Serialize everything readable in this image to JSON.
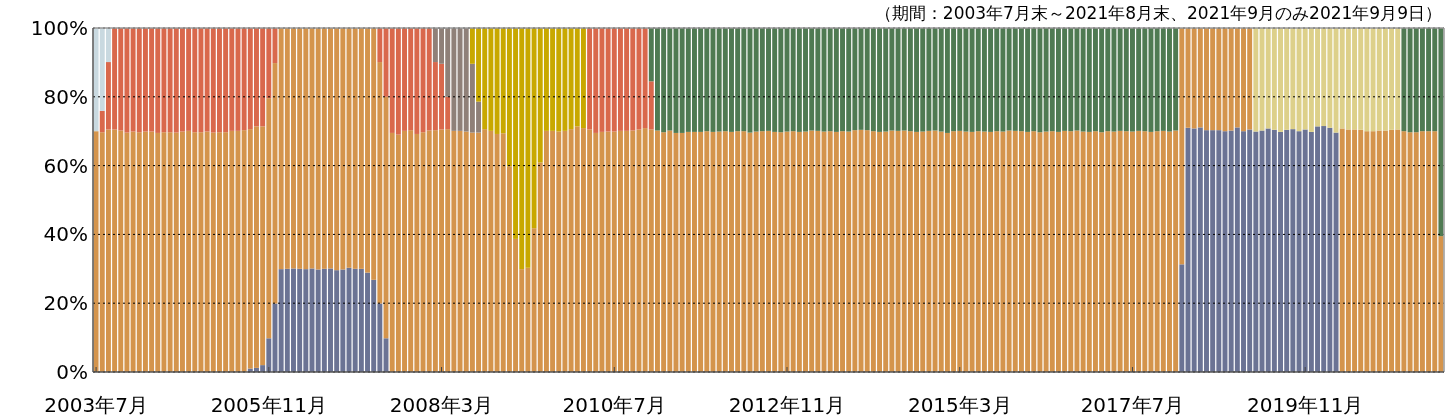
{
  "chart_data": {
    "type": "bar",
    "stacked": true,
    "subtitle": "（期間：2003年7月末～2021年8月末、2021年9月のみ2021年9月9日）",
    "categories": [
      "2003年7月",
      null,
      null,
      null,
      null,
      null,
      null,
      null,
      null,
      null,
      null,
      null,
      null,
      null,
      null,
      null,
      null,
      null,
      null,
      null,
      null,
      null,
      null,
      null,
      null,
      null,
      null,
      null,
      "2005年11月",
      null,
      null,
      null,
      null,
      null,
      null,
      null,
      null,
      null,
      null,
      null,
      null,
      null,
      null,
      null,
      null,
      null,
      null,
      null,
      null,
      null,
      null,
      null,
      null,
      null,
      null,
      null,
      "2008年3月",
      null,
      null,
      null,
      null,
      null,
      null,
      null,
      null,
      null,
      null,
      null,
      null,
      null,
      null,
      null,
      null,
      null,
      null,
      null,
      null,
      null,
      null,
      null,
      null,
      null,
      null,
      null,
      "2010年7月",
      null,
      null,
      null,
      null,
      null,
      null,
      null,
      null,
      null,
      null,
      null,
      null,
      null,
      null,
      null,
      null,
      null,
      null,
      null,
      null,
      null,
      null,
      null,
      null,
      null,
      null,
      null,
      "2012年11月",
      null,
      null,
      null,
      null,
      null,
      null,
      null,
      null,
      null,
      null,
      null,
      null,
      null,
      null,
      null,
      null,
      null,
      null,
      null,
      null,
      null,
      null,
      null,
      null,
      null,
      null,
      null,
      "2015年3月",
      null,
      null,
      null,
      null,
      null,
      null,
      null,
      null,
      null,
      null,
      null,
      null,
      null,
      null,
      null,
      null,
      null,
      null,
      null,
      null,
      null,
      null,
      null,
      null,
      null,
      null,
      null,
      "2017年7月",
      null,
      null,
      null,
      null,
      null,
      null,
      null,
      null,
      null,
      null,
      null,
      null,
      null,
      null,
      null,
      null,
      null,
      null,
      null,
      null,
      null,
      null,
      null,
      null,
      null,
      null,
      null,
      "2019年11月",
      null,
      null,
      null,
      null,
      null,
      null,
      null,
      null,
      null,
      null,
      null,
      null,
      null,
      null,
      null,
      null,
      null,
      null,
      null,
      null,
      null,
      null
    ],
    "ylim": [
      0,
      100
    ],
    "yticks": [
      {
        "value": 0,
        "label": "0%"
      },
      {
        "value": 20,
        "label": "20%"
      },
      {
        "value": 40,
        "label": "40%"
      },
      {
        "value": 60,
        "label": "60%"
      },
      {
        "value": 80,
        "label": "80%"
      },
      {
        "value": 100,
        "label": "100%"
      }
    ],
    "grid": "y",
    "series": [
      {
        "color": "#6b7394",
        "values": [
          null,
          null,
          null,
          null,
          null,
          null,
          null,
          null,
          null,
          null,
          null,
          null,
          null,
          null,
          null,
          null,
          null,
          null,
          null,
          null,
          null,
          null,
          null,
          null,
          null,
          1.0,
          1.2,
          2.0,
          9.8,
          19.9,
          29.9,
          30.0,
          30.1,
          30.0,
          29.9,
          30.1,
          29.8,
          30.0,
          30.1,
          29.6,
          29.8,
          30.3,
          30.0,
          30.0,
          28.9,
          26.8,
          19.9,
          9.8,
          null,
          null,
          null,
          null,
          null,
          null,
          null,
          null,
          null,
          null,
          null,
          null,
          null,
          null,
          null,
          null,
          null,
          null,
          null,
          null,
          null,
          null,
          null,
          null,
          null,
          null,
          null,
          null,
          null,
          null,
          null,
          null,
          null,
          null,
          null,
          null,
          null,
          null,
          null,
          null,
          null,
          null,
          null,
          null,
          null,
          null,
          null,
          null,
          null,
          null,
          null,
          null,
          null,
          null,
          null,
          null,
          null,
          null,
          null,
          null,
          null,
          null,
          null,
          null,
          null,
          null,
          null,
          null,
          null,
          null,
          null,
          null,
          null,
          null,
          null,
          null,
          null,
          null,
          null,
          null,
          null,
          null,
          null,
          null,
          null,
          null,
          null,
          null,
          null,
          null,
          null,
          null,
          null,
          null,
          null,
          null,
          null,
          null,
          null,
          null,
          null,
          null,
          null,
          null,
          null,
          null,
          null,
          null,
          null,
          null,
          null,
          null,
          null,
          null,
          null,
          null,
          null,
          null,
          null,
          null,
          null,
          null,
          null,
          null,
          null,
          null,
          null,
          null,
          31.3,
          71.0,
          70.8,
          71.1,
          70.3,
          70.3,
          70.3,
          70.0,
          70.2,
          71.1,
          70.0,
          70.5,
          69.9,
          70.2,
          70.8,
          70.4,
          69.8,
          70.4,
          70.6,
          70.0,
          70.5,
          69.8,
          71.4,
          71.5,
          71.0,
          69.6,
          null,
          null,
          null,
          null,
          null,
          null,
          null,
          null,
          null,
          null,
          null,
          null,
          null,
          null,
          null,
          null,
          null
        ]
      },
      {
        "color": "#d4944c",
        "values": [
          70.0,
          69.7,
          70.5,
          70.5,
          70.2,
          69.6,
          69.9,
          69.7,
          69.9,
          69.9,
          69.5,
          69.7,
          69.7,
          69.6,
          69.9,
          70.1,
          69.7,
          69.7,
          69.9,
          69.6,
          69.7,
          69.7,
          70.1,
          70.1,
          70.3,
          69.6,
          70.2,
          69.4,
          69.8,
          69.9,
          70.1,
          70.0,
          69.9,
          70.0,
          70.1,
          69.9,
          70.2,
          70.0,
          69.9,
          70.4,
          70.2,
          69.7,
          70.0,
          70.0,
          71.1,
          73.2,
          70.2,
          70.2,
          69.5,
          69.0,
          70.1,
          70.3,
          69.2,
          69.7,
          70.2,
          70.3,
          70.5,
          70.6,
          70.1,
          70.1,
          69.9,
          69.6,
          69.6,
          70.6,
          70.1,
          69.2,
          69.4,
          59.8,
          38.7,
          29.9,
          30.3,
          41.8,
          60.9,
          70.1,
          70.1,
          69.9,
          70.1,
          70.6,
          71.4,
          70.9,
          70.5,
          69.5,
          69.8,
          69.9,
          69.9,
          70.1,
          70.1,
          70.2,
          70.5,
          70.9,
          70.5,
          70.2,
          69.7,
          70.2,
          69.5,
          69.5,
          69.8,
          69.8,
          69.8,
          70.0,
          69.8,
          69.9,
          70.0,
          69.8,
          70.0,
          70.0,
          69.6,
          69.9,
          70.0,
          70.1,
          69.8,
          69.7,
          69.9,
          70.0,
          69.8,
          69.9,
          70.2,
          70.1,
          69.9,
          70.0,
          69.8,
          70.0,
          69.9,
          70.3,
          70.4,
          70.3,
          70.0,
          69.8,
          69.9,
          70.2,
          70.1,
          70.2,
          70.0,
          69.8,
          69.9,
          70.1,
          70.2,
          69.9,
          69.5,
          70.0,
          70.1,
          69.9,
          69.8,
          70.0,
          69.9,
          69.8,
          70.0,
          69.9,
          70.2,
          70.1,
          70.0,
          69.8,
          70.0,
          69.7,
          69.9,
          70.0,
          69.8,
          70.1,
          70.0,
          70.2,
          69.9,
          69.8,
          70.0,
          69.7,
          70.0,
          69.9,
          70.1,
          70.0,
          69.9,
          70.1,
          70.0,
          69.8,
          70.0,
          70.1,
          69.9,
          70.2,
          68.7,
          29.0,
          29.2,
          28.9,
          29.7,
          29.7,
          29.7,
          30.0,
          29.8,
          28.9,
          30.0,
          29.5,
          null,
          null,
          null,
          null,
          null,
          null,
          null,
          null,
          null,
          null,
          null,
          null,
          null,
          null,
          70.8,
          70.5,
          70.5,
          70.4,
          70.0,
          70.0,
          70.2,
          70.2,
          70.4,
          70.5,
          70.0,
          69.7,
          69.7,
          70.0,
          70.0,
          70.0,
          39.5
        ]
      },
      {
        "color": "#d9684c",
        "values": [
          null,
          6.2,
          19.6,
          29.5,
          29.8,
          30.4,
          30.1,
          30.3,
          30.1,
          30.1,
          30.5,
          30.3,
          30.3,
          30.4,
          30.1,
          29.9,
          30.3,
          30.3,
          30.1,
          30.4,
          30.3,
          30.3,
          29.9,
          29.9,
          29.7,
          29.4,
          28.6,
          28.6,
          20.4,
          10.2,
          null,
          null,
          null,
          null,
          null,
          null,
          null,
          null,
          null,
          null,
          null,
          null,
          null,
          null,
          null,
          null,
          9.9,
          20.0,
          30.5,
          31.0,
          29.9,
          29.7,
          30.8,
          30.3,
          29.8,
          19.8,
          19.1,
          9.4,
          null,
          null,
          null,
          null,
          null,
          null,
          null,
          null,
          null,
          null,
          null,
          null,
          null,
          null,
          null,
          null,
          null,
          null,
          null,
          null,
          null,
          null,
          29.5,
          30.5,
          30.2,
          30.1,
          30.1,
          29.9,
          29.9,
          29.8,
          29.5,
          29.1,
          14.0,
          null,
          null,
          null,
          null,
          null,
          null,
          null,
          null,
          null,
          null,
          null,
          null,
          null,
          null,
          null,
          null,
          null,
          null,
          null,
          null,
          null,
          null,
          null,
          null,
          null,
          null,
          null,
          null,
          null,
          null,
          null,
          null,
          null,
          null,
          null,
          null,
          null,
          null,
          null,
          null,
          null,
          null,
          null,
          null,
          null,
          null,
          null,
          null,
          null,
          null,
          null,
          null,
          null,
          null,
          null,
          null,
          null,
          null,
          null,
          null,
          null,
          null,
          null,
          null,
          null,
          null,
          null,
          null,
          null,
          null,
          null,
          null,
          null,
          null,
          null,
          null,
          null,
          null,
          null,
          null,
          null,
          null,
          null,
          null,
          null,
          null,
          null,
          null,
          null,
          null,
          null,
          null,
          null,
          null,
          null,
          null,
          null,
          null,
          null,
          null,
          null,
          null,
          null,
          null,
          null,
          null,
          null,
          null,
          null,
          null,
          null,
          null,
          null,
          null,
          null,
          null,
          null,
          null,
          null,
          null,
          null,
          null,
          null,
          null,
          null,
          null,
          null,
          null
        ]
      },
      {
        "color": "#c9d9e0",
        "values": [
          30.0,
          24.1,
          9.9,
          null,
          null,
          null,
          null,
          null,
          null,
          null,
          null,
          null,
          null,
          null,
          null,
          null,
          null,
          null,
          null,
          null,
          null,
          null,
          null,
          null,
          null,
          null,
          null,
          null,
          null,
          null,
          null,
          null,
          null,
          null,
          null,
          null,
          null,
          null,
          null,
          null,
          null,
          null,
          null,
          null,
          null,
          null,
          null,
          null,
          null,
          null,
          null,
          null,
          null,
          null,
          null,
          null,
          null,
          null,
          null,
          null,
          null,
          null,
          null,
          null,
          null,
          null,
          null,
          null,
          null,
          null,
          null,
          null,
          null,
          null,
          null,
          null,
          null,
          null,
          null,
          null,
          null,
          null,
          null,
          null,
          null,
          null,
          null,
          null,
          null,
          null,
          null,
          null,
          null,
          null,
          null,
          null,
          null,
          null,
          null,
          null,
          null,
          null,
          null,
          null,
          null,
          null,
          null,
          null,
          null,
          null,
          null,
          null,
          null,
          null,
          null,
          null,
          null,
          null,
          null,
          null,
          null,
          null,
          null,
          null,
          null,
          null,
          null,
          null,
          null,
          null,
          null,
          null,
          null,
          null,
          null,
          null,
          null,
          null,
          null,
          null,
          null,
          null,
          null,
          null,
          null,
          null,
          null,
          null,
          null,
          null,
          null,
          null,
          null,
          null,
          null,
          null,
          null,
          null,
          null,
          null,
          null,
          null,
          null,
          null,
          null,
          null,
          null,
          null,
          null,
          null,
          null,
          null,
          null,
          null,
          null,
          null,
          null,
          null,
          null,
          null,
          null,
          null,
          null,
          null,
          null,
          null,
          null,
          null,
          null,
          null,
          null,
          null,
          null,
          null,
          null,
          null,
          null,
          null,
          null,
          null,
          null,
          null,
          null,
          null,
          null,
          null,
          null,
          null,
          null,
          null,
          null,
          null,
          null,
          null,
          null,
          null,
          null,
          null,
          null
        ]
      },
      {
        "color": "#8f8078",
        "values": [
          null,
          null,
          null,
          null,
          null,
          null,
          null,
          null,
          null,
          null,
          null,
          null,
          null,
          null,
          null,
          null,
          null,
          null,
          null,
          null,
          null,
          null,
          null,
          null,
          null,
          null,
          null,
          null,
          null,
          null,
          null,
          null,
          null,
          null,
          null,
          null,
          null,
          null,
          null,
          null,
          null,
          null,
          null,
          null,
          null,
          null,
          null,
          null,
          null,
          null,
          null,
          null,
          null,
          null,
          null,
          9.9,
          10.4,
          20.0,
          29.9,
          29.9,
          30.1,
          20.0,
          9.0,
          null,
          null,
          null,
          null,
          null,
          null,
          null,
          null,
          null,
          null,
          null,
          null,
          null,
          null,
          null,
          null,
          null,
          null,
          null,
          null,
          null,
          null,
          null,
          null,
          null,
          null,
          null,
          null,
          null,
          null,
          null,
          null,
          null,
          null,
          null,
          null,
          null,
          null,
          null,
          null,
          null,
          null,
          null,
          null,
          null,
          null,
          null,
          null,
          null,
          null,
          null,
          null,
          null,
          null,
          null,
          null,
          null,
          null,
          null,
          null,
          null,
          null,
          null,
          null,
          null,
          null,
          null,
          null,
          null,
          null,
          null,
          null,
          null,
          null,
          null,
          null,
          null,
          null,
          null,
          null,
          null,
          null,
          null,
          null,
          null,
          null,
          null,
          null,
          null,
          null,
          null,
          null,
          null,
          null,
          null,
          null,
          null,
          null,
          null,
          null,
          null,
          null,
          null,
          null,
          null,
          null,
          null,
          null,
          null,
          null,
          null,
          null,
          null,
          null,
          null,
          null,
          null,
          null,
          null,
          null,
          null,
          null,
          null,
          null,
          null,
          null,
          null,
          null,
          null,
          null,
          null,
          null,
          null,
          null,
          null,
          null,
          null,
          null,
          null,
          null,
          null,
          null,
          null,
          null,
          null,
          null,
          null,
          null,
          null,
          null,
          null,
          null,
          null,
          null,
          null,
          null
        ]
      },
      {
        "color": "#c8a800",
        "values": [
          null,
          null,
          null,
          null,
          null,
          null,
          null,
          null,
          null,
          null,
          null,
          null,
          null,
          null,
          null,
          null,
          null,
          null,
          null,
          null,
          null,
          null,
          null,
          null,
          null,
          null,
          null,
          null,
          null,
          null,
          null,
          null,
          null,
          null,
          null,
          null,
          null,
          null,
          null,
          null,
          null,
          null,
          null,
          null,
          null,
          null,
          null,
          null,
          null,
          null,
          null,
          null,
          null,
          null,
          null,
          null,
          null,
          null,
          null,
          null,
          null,
          10.4,
          21.4,
          29.4,
          29.9,
          30.8,
          30.6,
          40.2,
          61.3,
          70.1,
          69.7,
          58.2,
          39.1,
          29.9,
          29.9,
          30.1,
          29.9,
          29.4,
          28.6,
          29.1,
          null,
          null,
          null,
          null,
          null,
          null,
          null,
          null,
          null,
          null,
          null,
          null,
          null,
          null,
          null,
          null,
          null,
          null,
          null,
          null,
          null,
          null,
          null,
          null,
          null,
          null,
          null,
          null,
          null,
          null,
          null,
          null,
          null,
          null,
          null,
          null,
          null,
          null,
          null,
          null,
          null,
          null,
          null,
          null,
          null,
          null,
          null,
          null,
          null,
          null,
          null,
          null,
          null,
          null,
          null,
          null,
          null,
          null,
          null,
          null,
          null,
          null,
          null,
          null,
          null,
          null,
          null,
          null,
          null,
          null,
          null,
          null,
          null,
          null,
          null,
          null,
          null,
          null,
          null,
          null,
          null,
          null,
          null,
          null,
          null,
          null,
          null,
          null,
          null,
          null,
          null,
          null,
          null,
          null,
          null,
          null,
          null,
          null,
          null,
          null,
          null,
          null,
          null,
          null,
          null,
          null,
          null,
          null,
          null,
          null,
          null,
          null,
          null,
          null,
          null,
          null,
          null,
          null,
          null,
          null,
          null,
          null,
          null,
          null,
          null,
          null,
          null,
          null,
          null,
          null,
          null,
          null,
          null,
          null,
          null,
          null,
          null,
          null,
          null
        ]
      },
      {
        "color": "#4f7a52",
        "values": [
          null,
          null,
          null,
          null,
          null,
          null,
          null,
          null,
          null,
          null,
          null,
          null,
          null,
          null,
          null,
          null,
          null,
          null,
          null,
          null,
          null,
          null,
          null,
          null,
          null,
          null,
          null,
          null,
          null,
          null,
          null,
          null,
          null,
          null,
          null,
          null,
          null,
          null,
          null,
          null,
          null,
          null,
          null,
          null,
          null,
          null,
          null,
          null,
          null,
          null,
          null,
          null,
          null,
          null,
          null,
          null,
          null,
          null,
          null,
          null,
          null,
          null,
          null,
          null,
          null,
          null,
          null,
          null,
          null,
          null,
          null,
          null,
          null,
          null,
          null,
          null,
          null,
          null,
          null,
          null,
          null,
          null,
          null,
          null,
          null,
          null,
          null,
          null,
          null,
          null,
          15.5,
          29.8,
          30.3,
          29.8,
          30.5,
          30.5,
          30.2,
          30.2,
          30.2,
          30.0,
          30.2,
          30.1,
          30.0,
          30.2,
          30.0,
          30.0,
          30.4,
          30.1,
          30.0,
          29.9,
          30.2,
          30.3,
          30.1,
          30.0,
          30.2,
          30.1,
          29.8,
          29.9,
          30.1,
          30.0,
          30.2,
          30.0,
          30.1,
          29.7,
          29.6,
          29.7,
          30.0,
          30.2,
          30.1,
          29.8,
          29.9,
          29.8,
          30.0,
          30.2,
          30.1,
          29.9,
          29.8,
          30.1,
          30.5,
          30.0,
          29.9,
          30.1,
          30.2,
          30.0,
          30.1,
          30.2,
          30.0,
          30.1,
          29.8,
          29.9,
          30.0,
          30.2,
          30.0,
          30.3,
          30.1,
          30.0,
          30.2,
          29.9,
          30.0,
          29.8,
          30.1,
          30.2,
          30.0,
          30.3,
          30.0,
          30.1,
          29.9,
          30.0,
          30.1,
          29.9,
          30.0,
          30.2,
          30.0,
          29.9,
          30.1,
          29.8,
          null,
          null,
          null,
          null,
          null,
          null,
          null,
          null,
          null,
          null,
          null,
          null,
          null,
          null,
          null,
          null,
          null,
          null,
          null,
          null,
          null,
          null,
          null,
          null,
          null,
          null,
          null,
          null,
          null,
          null,
          null,
          null,
          null,
          null,
          null,
          null,
          30.0,
          30.3,
          30.3,
          30.0,
          30.0,
          30.0,
          60.5
        ]
      },
      {
        "color": "#ddd08a",
        "values": [
          null,
          null,
          null,
          null,
          null,
          null,
          null,
          null,
          null,
          null,
          null,
          null,
          null,
          null,
          null,
          null,
          null,
          null,
          null,
          null,
          null,
          null,
          null,
          null,
          null,
          null,
          null,
          null,
          null,
          null,
          null,
          null,
          null,
          null,
          null,
          null,
          null,
          null,
          null,
          null,
          null,
          null,
          null,
          null,
          null,
          null,
          null,
          null,
          null,
          null,
          null,
          null,
          null,
          null,
          null,
          null,
          null,
          null,
          null,
          null,
          null,
          null,
          null,
          null,
          null,
          null,
          null,
          null,
          null,
          null,
          null,
          null,
          null,
          null,
          null,
          null,
          null,
          null,
          null,
          null,
          null,
          null,
          null,
          null,
          null,
          null,
          null,
          null,
          null,
          null,
          null,
          null,
          null,
          null,
          null,
          null,
          null,
          null,
          null,
          null,
          null,
          null,
          null,
          null,
          null,
          null,
          null,
          null,
          null,
          null,
          null,
          null,
          null,
          null,
          null,
          null,
          null,
          null,
          null,
          null,
          null,
          null,
          null,
          null,
          null,
          null,
          null,
          null,
          null,
          null,
          null,
          null,
          null,
          null,
          null,
          null,
          null,
          null,
          null,
          null,
          null,
          null,
          null,
          null,
          null,
          null,
          null,
          null,
          null,
          null,
          null,
          null,
          null,
          null,
          null,
          null,
          null,
          null,
          null,
          null,
          null,
          null,
          null,
          null,
          null,
          null,
          null,
          null,
          null,
          null,
          null,
          null,
          null,
          null,
          null,
          null,
          null,
          null,
          null,
          null,
          null,
          null,
          null,
          null,
          null,
          null,
          null,
          null,
          30.1,
          29.8,
          29.2,
          29.6,
          30.2,
          29.6,
          29.4,
          30.0,
          29.5,
          30.2,
          28.6,
          28.5,
          29.0,
          30.4,
          29.2,
          29.5,
          29.5,
          29.6,
          30.0,
          30.0,
          29.8,
          29.8,
          29.6,
          29.5,
          null,
          null,
          null,
          null,
          null,
          null,
          null
        ]
      }
    ]
  }
}
